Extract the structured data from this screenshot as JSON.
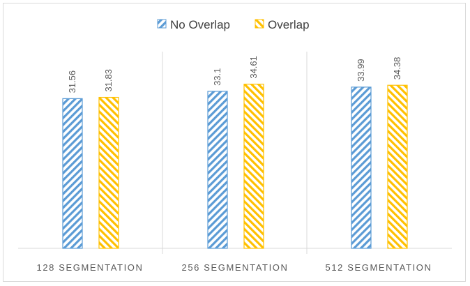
{
  "chart_data": {
    "type": "bar",
    "title": "",
    "xlabel": "",
    "ylabel": "",
    "categories": [
      "128 SEGMENTATION",
      "256 SEGMENTATION",
      "512 SEGMENTATION"
    ],
    "series": [
      {
        "name": "No Overlap",
        "values": [
          31.56,
          33.1,
          33.99
        ],
        "labels": [
          "31.56",
          "33.1",
          "33.99"
        ],
        "color": "#5b9bd5",
        "pattern": "hatch-right"
      },
      {
        "name": "Overlap",
        "values": [
          31.83,
          34.61,
          34.38
        ],
        "labels": [
          "31.83",
          "34.61",
          "34.38"
        ],
        "color": "#ffc000",
        "pattern": "hatch-up"
      }
    ],
    "ylim": [
      0,
      40
    ],
    "grid": false,
    "legend_position": "top-center"
  }
}
